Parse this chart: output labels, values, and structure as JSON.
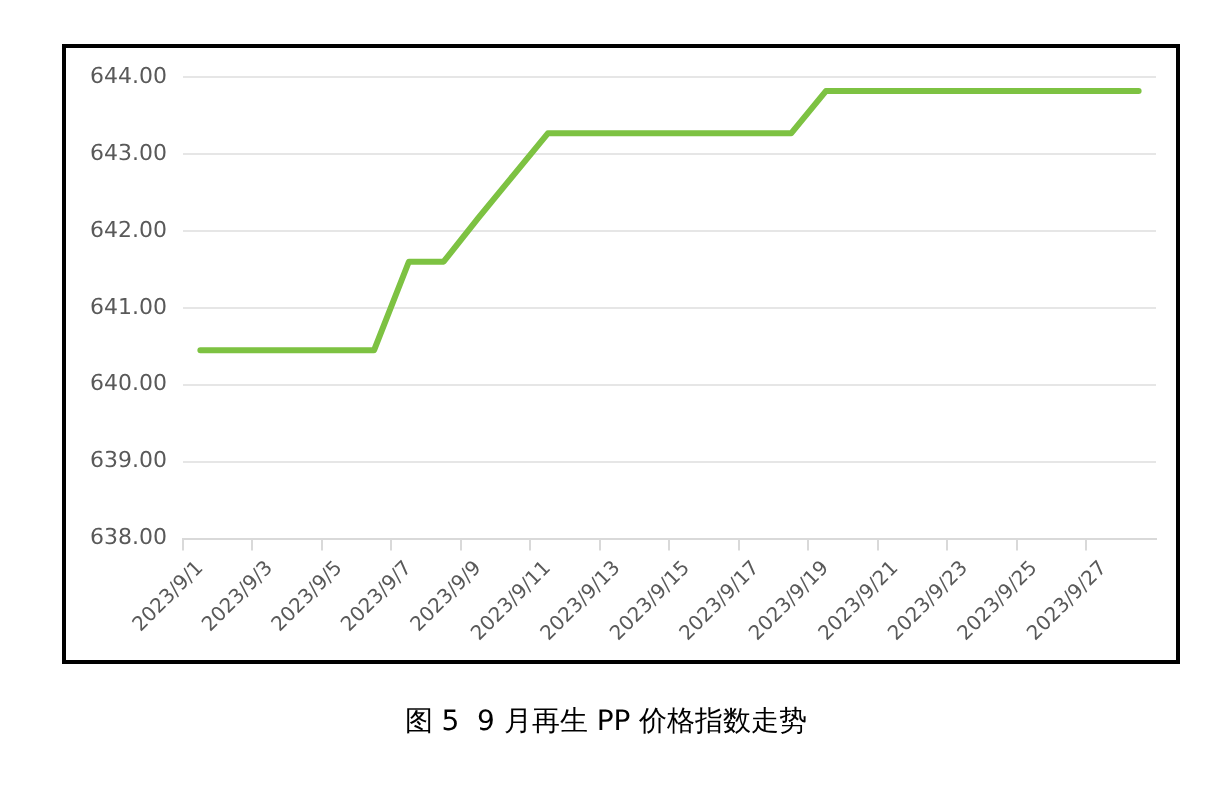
{
  "chart_data": {
    "type": "line",
    "title": "图 5  9 月再生 PP 价格指数走势",
    "categories": [
      "2023/9/1",
      null,
      "2023/9/3",
      null,
      "2023/9/5",
      null,
      "2023/9/7",
      null,
      "2023/9/9",
      null,
      "2023/9/11",
      null,
      "2023/9/13",
      null,
      "2023/9/15",
      null,
      "2023/9/17",
      null,
      "2023/9/19",
      null,
      "2023/9/21",
      null,
      "2023/9/23",
      null,
      "2023/9/25",
      null,
      "2023/9/27",
      null
    ],
    "series": [
      {
        "color": "#7dc242",
        "values": [
          640.45,
          640.45,
          640.45,
          640.45,
          640.45,
          640.45,
          641.6,
          641.6,
          642.17,
          642.72,
          643.27,
          643.27,
          643.27,
          643.27,
          643.27,
          643.27,
          643.27,
          643.27,
          643.82,
          643.82,
          643.82,
          643.82,
          643.82,
          643.82,
          643.82,
          643.82,
          643.82,
          643.82
        ]
      }
    ],
    "ylim": [
      638,
      644
    ],
    "yticks": [
      {
        "value": 638,
        "label": "638.00"
      },
      {
        "value": 639,
        "label": "639.00"
      },
      {
        "value": 640,
        "label": "640.00"
      },
      {
        "value": 641,
        "label": "641.00"
      },
      {
        "value": 642,
        "label": "642.00"
      },
      {
        "value": 643,
        "label": "643.00"
      },
      {
        "value": 644,
        "label": "644.00"
      }
    ],
    "grid": "y",
    "legend": false,
    "marker": "none",
    "line_style": "solid"
  }
}
